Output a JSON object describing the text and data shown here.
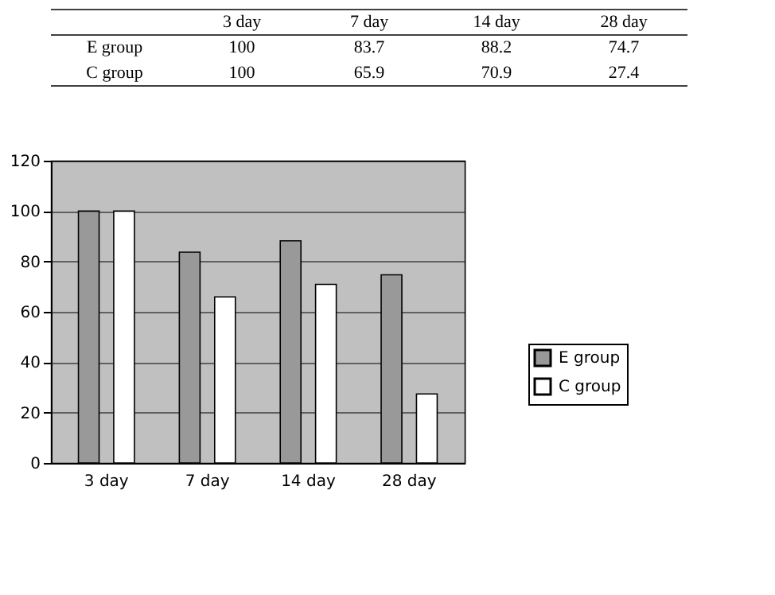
{
  "chart_data": [
    {
      "type": "other",
      "data_labels": true,
      "categories": [
        "3 day",
        "7 day",
        "14 day",
        "28 day"
      ],
      "series": [
        {
          "name": "E group",
          "values": [
            100,
            83.7,
            88.2,
            74.7
          ]
        },
        {
          "name": "C group",
          "values": [
            100,
            65.9,
            70.9,
            27.4
          ]
        }
      ]
    },
    {
      "type": "bar",
      "categories": [
        "3 day",
        "7 day",
        "14 day",
        "28 day"
      ],
      "series": [
        {
          "name": "E group",
          "color": "#999999",
          "values": [
            100,
            83.7,
            88.2,
            74.7
          ]
        },
        {
          "name": "C group",
          "color": "#ffffff",
          "values": [
            100,
            65.9,
            70.9,
            27.4
          ]
        }
      ],
      "ylim": [
        0,
        120
      ],
      "yticks": [
        0,
        20,
        40,
        60,
        80,
        100,
        120
      ],
      "grid": "y",
      "legend": "right"
    }
  ]
}
